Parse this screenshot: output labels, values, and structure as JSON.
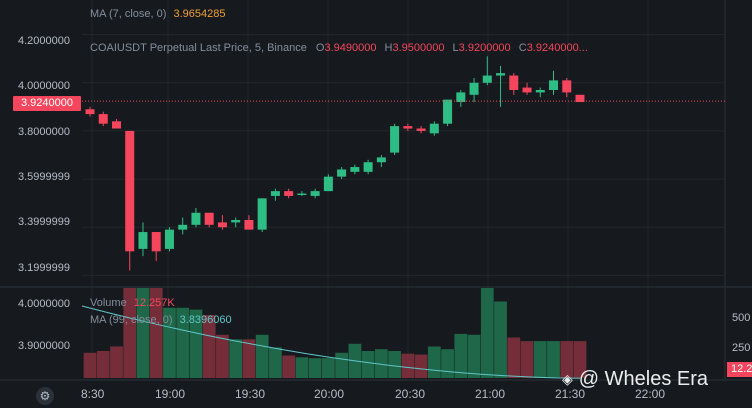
{
  "main_chart": {
    "ma_legend": {
      "label": "MA (7, close, 0)",
      "value": "3.9654285",
      "value_color": "#f0a030"
    },
    "info_line": {
      "symbol": "COAIUSDT Perpetual Last Price, 5, Binance",
      "open_label": "O",
      "open": "3.9490000",
      "high_label": "H",
      "high": "3.9500000",
      "low_label": "L",
      "low": "3.9200000",
      "close_label": "C",
      "close": "3.9240000...",
      "value_color": "#f6465d"
    },
    "y_ticks": [
      "4.2000000",
      "4.0000000",
      "3.8000000",
      "3.5999999",
      "3.3999999",
      "3.1999999"
    ],
    "current_price_tag": "3.9240000"
  },
  "volume_panel": {
    "volume_legend": {
      "label": "Volume",
      "value": "12.257K",
      "value_color": "#f6465d"
    },
    "ma_legend": {
      "label": "MA (99, close, 0)",
      "value": "3.8396060",
      "value_color": "#5ec8c8"
    },
    "left_ticks": [
      "4.0000000",
      "3.9000000"
    ],
    "right_ticks": [
      "500",
      "250"
    ],
    "right_tag": "12.2"
  },
  "time_axis": {
    "labels": [
      "8:30",
      "19:00",
      "19:30",
      "20:00",
      "20:30",
      "21:00",
      "21:30",
      "22:00"
    ]
  },
  "watermark": {
    "text": "@ Wheles Era"
  },
  "colors": {
    "up": "#2ebd85",
    "down": "#f6465d",
    "background": "#161a1e",
    "grid": "#23272d",
    "ma99": "#5ec8c8"
  },
  "chart_data": {
    "type": "candlestick",
    "interval": "5m",
    "time_labels": [
      "8:30",
      "19:00",
      "19:30",
      "20:00",
      "20:30",
      "21:00",
      "21:30",
      "22:00"
    ],
    "ylim": [
      3.16,
      4.24
    ],
    "candles": [
      {
        "o": 3.89,
        "h": 3.9,
        "l": 3.86,
        "c": 3.87
      },
      {
        "o": 3.87,
        "h": 3.88,
        "l": 3.82,
        "c": 3.83
      },
      {
        "o": 3.84,
        "h": 3.85,
        "l": 3.81,
        "c": 3.81
      },
      {
        "o": 3.8,
        "h": 3.8,
        "l": 3.22,
        "c": 3.3
      },
      {
        "o": 3.31,
        "h": 3.42,
        "l": 3.28,
        "c": 3.38
      },
      {
        "o": 3.38,
        "h": 3.38,
        "l": 3.26,
        "c": 3.3
      },
      {
        "o": 3.31,
        "h": 3.4,
        "l": 3.3,
        "c": 3.39
      },
      {
        "o": 3.39,
        "h": 3.44,
        "l": 3.37,
        "c": 3.41
      },
      {
        "o": 3.41,
        "h": 3.48,
        "l": 3.4,
        "c": 3.46
      },
      {
        "o": 3.46,
        "h": 3.46,
        "l": 3.4,
        "c": 3.41
      },
      {
        "o": 3.42,
        "h": 3.45,
        "l": 3.39,
        "c": 3.4
      },
      {
        "o": 3.42,
        "h": 3.44,
        "l": 3.4,
        "c": 3.43
      },
      {
        "o": 3.43,
        "h": 3.45,
        "l": 3.39,
        "c": 3.39
      },
      {
        "o": 3.39,
        "h": 3.52,
        "l": 3.38,
        "c": 3.52
      },
      {
        "o": 3.53,
        "h": 3.56,
        "l": 3.51,
        "c": 3.55
      },
      {
        "o": 3.55,
        "h": 3.56,
        "l": 3.52,
        "c": 3.53
      },
      {
        "o": 3.54,
        "h": 3.55,
        "l": 3.53,
        "c": 3.54
      },
      {
        "o": 3.53,
        "h": 3.56,
        "l": 3.52,
        "c": 3.55
      },
      {
        "o": 3.55,
        "h": 3.62,
        "l": 3.55,
        "c": 3.61
      },
      {
        "o": 3.61,
        "h": 3.65,
        "l": 3.6,
        "c": 3.64
      },
      {
        "o": 3.63,
        "h": 3.66,
        "l": 3.62,
        "c": 3.65
      },
      {
        "o": 3.63,
        "h": 3.68,
        "l": 3.62,
        "c": 3.67
      },
      {
        "o": 3.67,
        "h": 3.7,
        "l": 3.65,
        "c": 3.69
      },
      {
        "o": 3.71,
        "h": 3.83,
        "l": 3.7,
        "c": 3.82
      },
      {
        "o": 3.82,
        "h": 3.83,
        "l": 3.8,
        "c": 3.81
      },
      {
        "o": 3.81,
        "h": 3.82,
        "l": 3.79,
        "c": 3.8
      },
      {
        "o": 3.79,
        "h": 3.84,
        "l": 3.78,
        "c": 3.83
      },
      {
        "o": 3.83,
        "h": 3.93,
        "l": 3.82,
        "c": 3.93
      },
      {
        "o": 3.92,
        "h": 3.97,
        "l": 3.9,
        "c": 3.96
      },
      {
        "o": 3.95,
        "h": 4.02,
        "l": 3.92,
        "c": 4.0
      },
      {
        "o": 4.0,
        "h": 4.11,
        "l": 3.99,
        "c": 4.03
      },
      {
        "o": 4.03,
        "h": 4.07,
        "l": 3.9,
        "c": 4.04
      },
      {
        "o": 4.03,
        "h": 4.04,
        "l": 3.95,
        "c": 3.97
      },
      {
        "o": 3.98,
        "h": 4.0,
        "l": 3.95,
        "c": 3.96
      },
      {
        "o": 3.96,
        "h": 3.98,
        "l": 3.94,
        "c": 3.97
      },
      {
        "o": 3.97,
        "h": 4.05,
        "l": 3.95,
        "c": 4.01
      },
      {
        "o": 4.01,
        "h": 4.02,
        "l": 3.94,
        "c": 3.96
      },
      {
        "o": 3.95,
        "h": 3.95,
        "l": 3.92,
        "c": 3.92
      }
    ],
    "current_price": 3.924,
    "volume_ma99_label": "MA (99, close, 0)",
    "volume_ma99_endpoints": [
      4.0,
      3.8396
    ],
    "volume_ylim": [
      3.84,
      4.04
    ],
    "volumes_relative": [
      0.28,
      0.3,
      0.35,
      1.0,
      1.0,
      1.0,
      0.78,
      0.78,
      0.76,
      0.7,
      0.48,
      0.43,
      0.43,
      0.48,
      0.34,
      0.25,
      0.23,
      0.22,
      0.22,
      0.28,
      0.38,
      0.3,
      0.32,
      0.3,
      0.27,
      0.26,
      0.35,
      0.32,
      0.49,
      0.48,
      1.0,
      0.85,
      0.45,
      0.41,
      0.41,
      0.41,
      0.41,
      0.41
    ]
  }
}
